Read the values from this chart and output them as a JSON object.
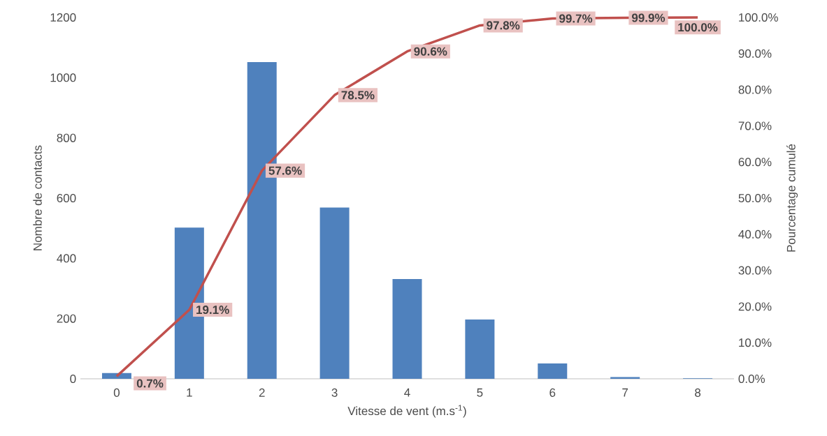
{
  "chart_data": {
    "type": "bar",
    "xlabel": "Vitesse de vent (m.s$^{-1}$)",
    "ylabel": "Nombre de contacts",
    "y2label": "Pourcentage cumulé",
    "categories": [
      "0",
      "1",
      "2",
      "3",
      "4",
      "5",
      "6",
      "7",
      "8"
    ],
    "series": [
      {
        "color": "#4f81bd",
        "values": [
          19,
          502,
          1052,
          569,
          331,
          197,
          51,
          6,
          2
        ]
      },
      {
        "type": "line",
        "axis": "y2",
        "color": "#c0504d",
        "values": [
          0.7,
          19.1,
          57.6,
          78.5,
          90.6,
          97.8,
          99.7,
          99.9,
          100.0
        ],
        "value_labels": [
          "0.7%",
          "19.1%",
          "57.6%",
          "78.5%",
          "90.6%",
          "97.8%",
          "99.7%",
          "99.9%",
          "100.0%"
        ]
      }
    ],
    "ylim": [
      0,
      1200
    ],
    "yticks": [
      0,
      200,
      400,
      600,
      800,
      1000,
      1200
    ],
    "y2lim": [
      0,
      100
    ],
    "y2ticks": [
      {
        "value": 0,
        "label": "0.0%"
      },
      {
        "value": 10,
        "label": "10.0%"
      },
      {
        "value": 20,
        "label": "20.0%"
      },
      {
        "value": 30,
        "label": "30.0%"
      },
      {
        "value": 40,
        "label": "40.0%"
      },
      {
        "value": 50,
        "label": "50.0%"
      },
      {
        "value": 60,
        "label": "60.0%"
      },
      {
        "value": 70,
        "label": "70.0%"
      },
      {
        "value": 80,
        "label": "80.0%"
      },
      {
        "value": 90,
        "label": "90.0%"
      },
      {
        "value": 100,
        "label": "100.0%"
      }
    ]
  }
}
